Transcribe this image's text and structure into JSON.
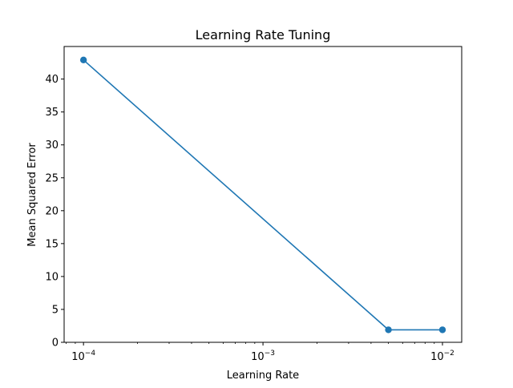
{
  "chart_data": {
    "type": "line",
    "title": "Learning Rate Tuning",
    "xlabel": "Learning Rate",
    "ylabel": "Mean Squared Error",
    "x_scale": "log",
    "x": [
      0.0001,
      0.005,
      0.01
    ],
    "series": [
      {
        "values": [
          42.9,
          1.9,
          1.9
        ],
        "color": "#1f77b4"
      }
    ],
    "xlim": [
      7.8e-05,
      0.0128
    ],
    "ylim": [
      0,
      44.95
    ],
    "x_major_ticks": [
      0.0001,
      0.001,
      0.01
    ],
    "x_tick_labels": [
      {
        "base": "10",
        "exp": "−4"
      },
      {
        "base": "10",
        "exp": "−3"
      },
      {
        "base": "10",
        "exp": "−2"
      }
    ],
    "y_ticks": [
      0,
      5,
      10,
      15,
      20,
      25,
      30,
      35,
      40
    ],
    "y_tick_labels": [
      "0",
      "5",
      "10",
      "15",
      "20",
      "25",
      "30",
      "35",
      "40"
    ],
    "grid": false,
    "legend": "none",
    "markers": true
  }
}
